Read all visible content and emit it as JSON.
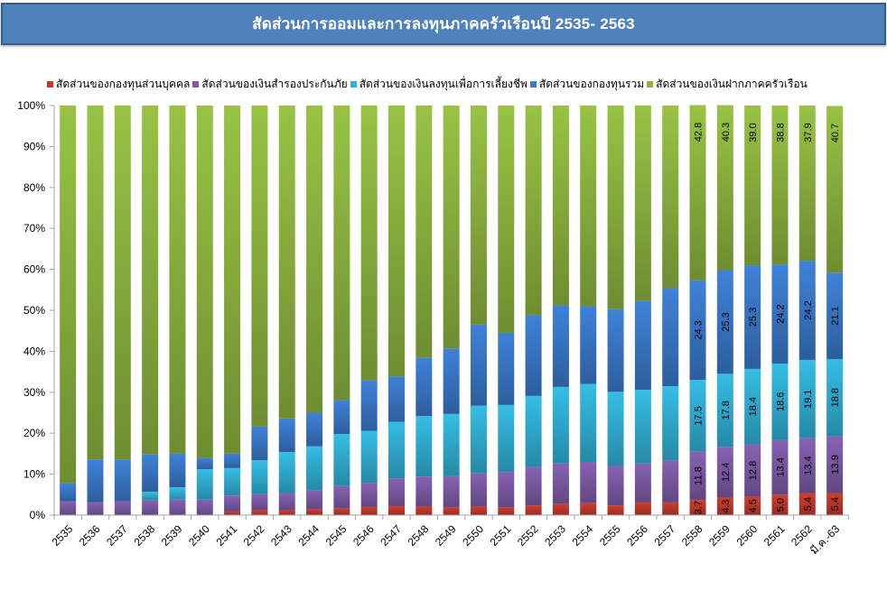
{
  "chart_data": {
    "type": "bar",
    "stacked": "percent",
    "title": "สัดส่วนการออมและการลงทุนภาคครัวเรือนปี 2535- 2563",
    "xlabel": "",
    "ylabel": "",
    "ylim": [
      0,
      100
    ],
    "y_ticks": [
      "0%",
      "10%",
      "20%",
      "30%",
      "40%",
      "50%",
      "60%",
      "70%",
      "80%",
      "90%",
      "100%"
    ],
    "grid": false,
    "legend_position": "top",
    "categories": [
      "2535",
      "2536",
      "2537",
      "2538",
      "2539",
      "2540",
      "2541",
      "2542",
      "2543",
      "2544",
      "2545",
      "2546",
      "2547",
      "2548",
      "2549",
      "2550",
      "2551",
      "2552",
      "2553",
      "2554",
      "2555",
      "2556",
      "2557",
      "2558",
      "2559",
      "2560",
      "2561",
      "2562",
      "มี.ค.-63"
    ],
    "series": [
      {
        "name": "สัดส่วนของกองทุนส่วนบุคคล",
        "color": "#C0392B",
        "values": [
          0,
          0,
          0,
          0,
          0,
          0,
          0.9,
          1.2,
          1.2,
          1.4,
          1.6,
          2.0,
          2.2,
          2.1,
          1.9,
          2.1,
          1.9,
          2.4,
          2.7,
          2.9,
          2.4,
          3.1,
          3.1,
          3.7,
          4.3,
          4.5,
          5.0,
          5.4,
          5.4
        ],
        "labels": [
          null,
          null,
          null,
          null,
          null,
          null,
          null,
          null,
          null,
          null,
          null,
          null,
          null,
          null,
          null,
          null,
          null,
          null,
          null,
          null,
          null,
          null,
          null,
          "3.7",
          "4.3",
          "4.5",
          "5.0",
          "5.4",
          "5.4"
        ]
      },
      {
        "name": "สัดส่วนของเงินสำรองประกันภัย",
        "color": "#7D5BA6",
        "values": [
          3.4,
          3.2,
          3.4,
          3.6,
          3.8,
          3.8,
          3.9,
          3.9,
          4.2,
          4.7,
          5.5,
          5.9,
          6.8,
          7.3,
          7.6,
          8.1,
          8.6,
          9.3,
          9.9,
          10.1,
          9.6,
          9.5,
          10.2,
          11.8,
          12.4,
          12.8,
          13.4,
          13.4,
          13.9
        ],
        "labels": [
          null,
          null,
          null,
          null,
          null,
          null,
          null,
          null,
          null,
          null,
          null,
          null,
          null,
          null,
          null,
          null,
          null,
          null,
          null,
          null,
          null,
          null,
          null,
          "11.8",
          "12.4",
          "12.8",
          "13.4",
          "13.4",
          "13.9"
        ]
      },
      {
        "name": "สัดส่วนของเงินลงทุนเพื่อการเลี้ยงชีพ",
        "color": "#31B0D5",
        "values": [
          0,
          0,
          0,
          2.1,
          3.0,
          7.4,
          6.7,
          8.3,
          10.0,
          10.7,
          12.7,
          12.7,
          13.8,
          14.8,
          15.2,
          16.5,
          16.4,
          17.4,
          18.7,
          19.0,
          18.1,
          18.0,
          18.2,
          17.5,
          17.8,
          18.4,
          18.6,
          19.1,
          18.8
        ],
        "labels": [
          null,
          null,
          null,
          null,
          null,
          null,
          null,
          null,
          null,
          null,
          null,
          null,
          null,
          null,
          null,
          null,
          null,
          null,
          null,
          null,
          null,
          null,
          null,
          "17.5",
          "17.8",
          "18.4",
          "18.6",
          "19.1",
          "18.8"
        ]
      },
      {
        "name": "สัดส่วนของกองทุนรวม",
        "color": "#3A78C9",
        "values": [
          4.4,
          10.4,
          10.2,
          9.2,
          8.2,
          2.8,
          3.5,
          8.2,
          8.2,
          8.2,
          8.3,
          12.3,
          11.1,
          14.2,
          16.0,
          19.8,
          17.6,
          19.7,
          19.9,
          19.0,
          20.2,
          21.7,
          23.9,
          24.3,
          25.3,
          25.3,
          24.2,
          24.2,
          21.1
        ],
        "labels": [
          null,
          null,
          null,
          null,
          null,
          null,
          null,
          null,
          null,
          null,
          null,
          null,
          null,
          null,
          null,
          null,
          null,
          null,
          null,
          null,
          null,
          null,
          null,
          "24.3",
          "25.3",
          "25.3",
          "24.2",
          "24.2",
          "21.1"
        ]
      },
      {
        "name": "สัดส่วนของเงินฝากภาคครัวเรือน",
        "color": "#8DB53F",
        "values": [
          92.2,
          86.4,
          86.4,
          85.1,
          85.0,
          86.0,
          85.0,
          78.4,
          76.4,
          75.0,
          71.9,
          67.1,
          66.1,
          61.6,
          59.3,
          53.5,
          55.5,
          51.2,
          48.8,
          49.0,
          49.7,
          47.7,
          44.6,
          42.8,
          40.3,
          39.0,
          38.8,
          37.9,
          40.7
        ],
        "labels": [
          null,
          null,
          null,
          null,
          null,
          null,
          null,
          null,
          null,
          null,
          null,
          null,
          null,
          null,
          null,
          null,
          null,
          null,
          null,
          null,
          null,
          null,
          null,
          "42.8",
          "40.3",
          "39.0",
          "38.8",
          "37.9",
          "40.7"
        ]
      }
    ]
  }
}
